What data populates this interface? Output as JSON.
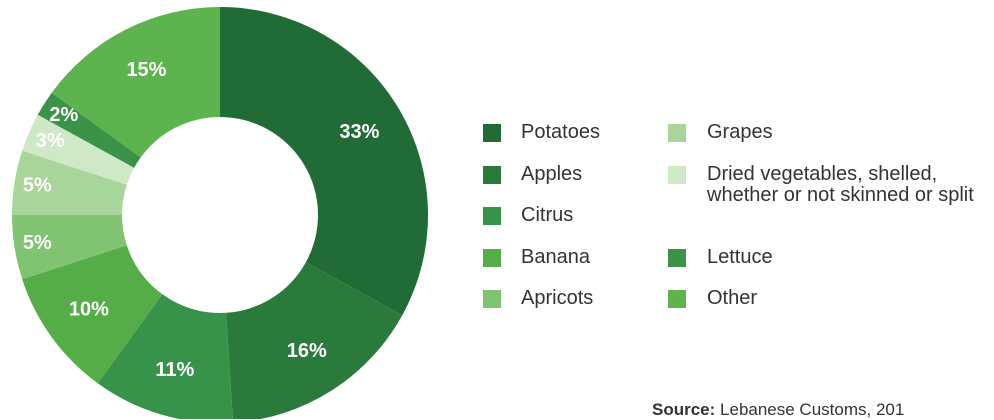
{
  "chart_data": {
    "type": "donut",
    "categories": [
      "Potatoes",
      "Apples",
      "Citrus",
      "Banana",
      "Apricots",
      "Grapes",
      "Dried  vegetables, shelled, whether or not skinned or split",
      "Lettuce",
      "Other"
    ],
    "values": [
      33,
      16,
      11,
      10,
      5,
      5,
      3,
      2,
      15
    ],
    "value_labels": [
      "33%",
      "16%",
      "11%",
      "10%",
      "5%",
      "5%",
      "3%",
      "2%",
      "15%"
    ],
    "colors": [
      "#216b37",
      "#2a7a3b",
      "#37924a",
      "#55ad48",
      "#80c370",
      "#a8d59a",
      "#cfe8c5",
      "#3a9347",
      "#5db34d"
    ],
    "source_label": "Source:",
    "source": "Lebanese Customs, 201"
  }
}
